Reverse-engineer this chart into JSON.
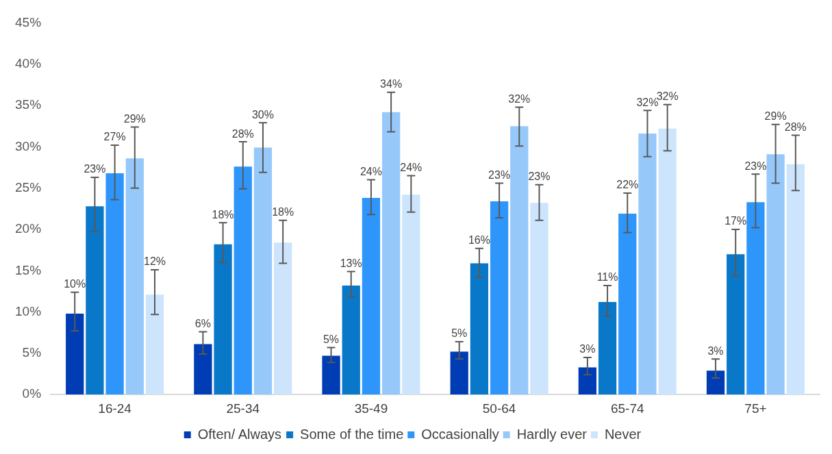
{
  "chart_data": {
    "type": "bar",
    "categories": [
      "16-24",
      "25-34",
      "35-49",
      "50-64",
      "65-74",
      "75+"
    ],
    "ylim": [
      0,
      45
    ],
    "yticks": [
      {
        "value": 0,
        "label": "0%"
      },
      {
        "value": 5,
        "label": "5%"
      },
      {
        "value": 10,
        "label": "10%"
      },
      {
        "value": 15,
        "label": "15%"
      },
      {
        "value": 20,
        "label": "20%"
      },
      {
        "value": 25,
        "label": "25%"
      },
      {
        "value": 30,
        "label": "30%"
      },
      {
        "value": 35,
        "label": "35%"
      },
      {
        "value": 40,
        "label": "40%"
      },
      {
        "value": 45,
        "label": "45%"
      }
    ],
    "grid": false,
    "legend": "bottom",
    "series": [
      {
        "name": "Often/ Always",
        "color": "#003cb3",
        "values": [
          9.8,
          6.1,
          4.7,
          5.2,
          3.3,
          2.9
        ],
        "errors": [
          [
            7.7,
            12.4
          ],
          [
            4.9,
            7.6
          ],
          [
            3.9,
            5.7
          ],
          [
            4.3,
            6.4
          ],
          [
            2.4,
            4.5
          ],
          [
            2.0,
            4.3
          ]
        ],
        "value_labels": [
          "10%",
          "6%",
          "5%",
          "5%",
          "3%",
          "3%"
        ]
      },
      {
        "name": "Some of the time",
        "color": "#0a78c8",
        "values": [
          22.8,
          18.2,
          13.2,
          15.9,
          11.2,
          17.0
        ],
        "errors": [
          [
            19.7,
            26.3
          ],
          [
            16.0,
            20.8
          ],
          [
            11.8,
            14.9
          ],
          [
            14.2,
            17.7
          ],
          [
            9.5,
            13.2
          ],
          [
            14.4,
            20.0
          ]
        ],
        "value_labels": [
          "23%",
          "18%",
          "13%",
          "16%",
          "11%",
          "17%"
        ]
      },
      {
        "name": "Occasionally",
        "color": "#2e96fa",
        "values": [
          26.8,
          27.6,
          23.8,
          23.4,
          21.9,
          23.3
        ],
        "errors": [
          [
            23.6,
            30.2
          ],
          [
            24.9,
            30.6
          ],
          [
            21.8,
            26.0
          ],
          [
            21.4,
            25.6
          ],
          [
            19.6,
            24.4
          ],
          [
            20.2,
            26.7
          ]
        ],
        "value_labels": [
          "27%",
          "28%",
          "24%",
          "23%",
          "22%",
          "23%"
        ]
      },
      {
        "name": "Hardly ever",
        "color": "#96c8fa",
        "values": [
          28.6,
          29.9,
          34.2,
          32.5,
          31.6,
          29.1
        ],
        "errors": [
          [
            25.0,
            32.4
          ],
          [
            26.9,
            32.9
          ],
          [
            31.8,
            36.6
          ],
          [
            30.1,
            34.8
          ],
          [
            28.8,
            34.4
          ],
          [
            25.6,
            32.7
          ]
        ],
        "value_labels": [
          "29%",
          "30%",
          "34%",
          "32%",
          "32%",
          "29%"
        ]
      },
      {
        "name": "Never",
        "color": "#cce4fc",
        "values": [
          12.1,
          18.4,
          24.2,
          23.2,
          32.2,
          27.9
        ],
        "errors": [
          [
            9.7,
            15.1
          ],
          [
            15.9,
            21.1
          ],
          [
            22.1,
            26.5
          ],
          [
            21.1,
            25.4
          ],
          [
            29.5,
            35.1
          ],
          [
            24.7,
            31.4
          ]
        ],
        "value_labels": [
          "12%",
          "18%",
          "24%",
          "23%",
          "32%",
          "28%"
        ]
      }
    ]
  }
}
